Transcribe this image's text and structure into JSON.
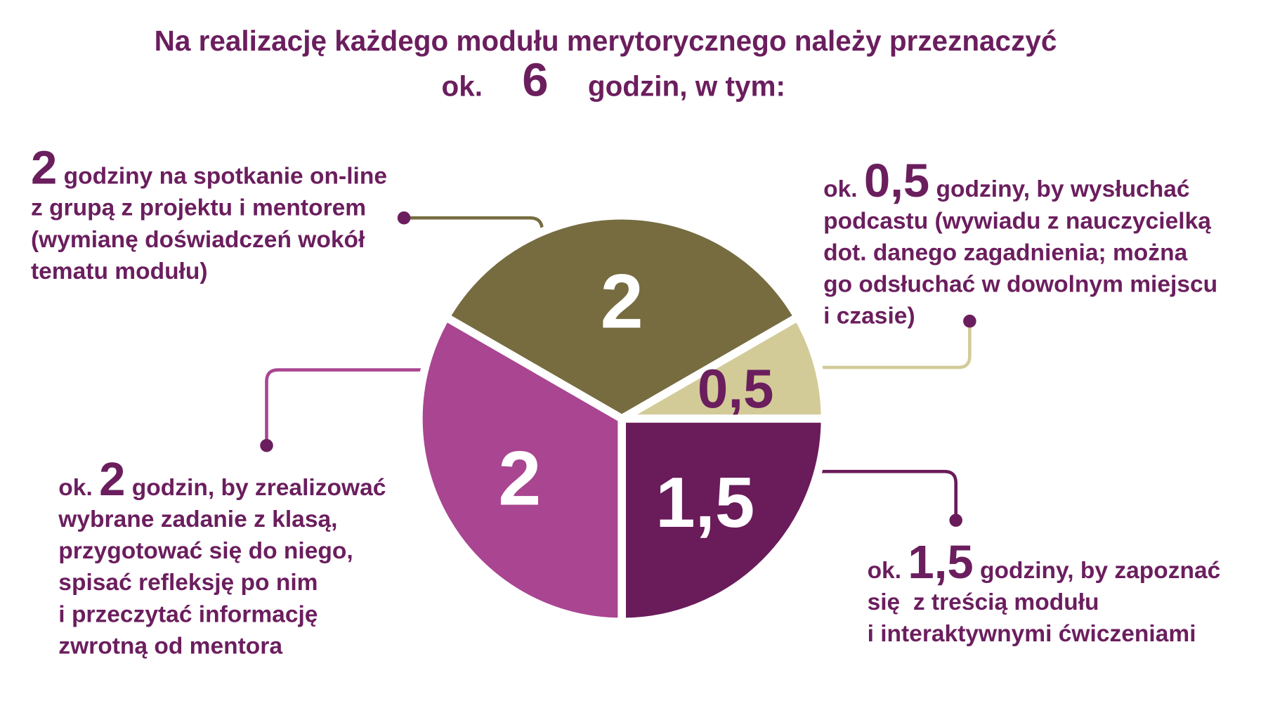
{
  "chart_data": {
    "type": "pie",
    "title_line1": "Na realizację każdego modułu merytorycznego należy przeznaczyć",
    "title_prefix": "ok.",
    "title_number": "6",
    "title_suffix": "godzin, w tym:",
    "values": [
      2,
      0.5,
      1.5,
      2
    ],
    "value_labels": [
      "2",
      "0,5",
      "1,5",
      "2"
    ],
    "colors": [
      "#766c40",
      "#d2cb98",
      "#6a1b5a",
      "#a94591"
    ],
    "annotations": [
      {
        "number": "2",
        "lines": [
          "godziny na spotkanie on-line",
          "z grupą z projektu i mentorem",
          "(wymianę doświadczeń wokół",
          "tematu modułu)"
        ]
      },
      {
        "prefix": "ok.",
        "number": "0,5",
        "lines": [
          "godziny, by wysłuchać",
          "podcastu (wywiadu z nauczycielką",
          "dot. danego zagadnienia; można",
          "go odsłuchać w dowolnym miejscu",
          "i czasie)"
        ]
      },
      {
        "prefix": "ok.",
        "number": "1,5",
        "lines": [
          "godziny, by zapoznać",
          "się  z treścią modułu",
          "i interaktywnymi ćwiczeniami"
        ]
      },
      {
        "prefix": "ok.",
        "number": "2",
        "lines": [
          "godzin, by zrealizować",
          "wybrane zadanie z klasą,",
          "przygotować się do niego,",
          "spisać refleksję po nim",
          "i przeczytać informację",
          "zwrotną od mentora"
        ]
      }
    ]
  }
}
